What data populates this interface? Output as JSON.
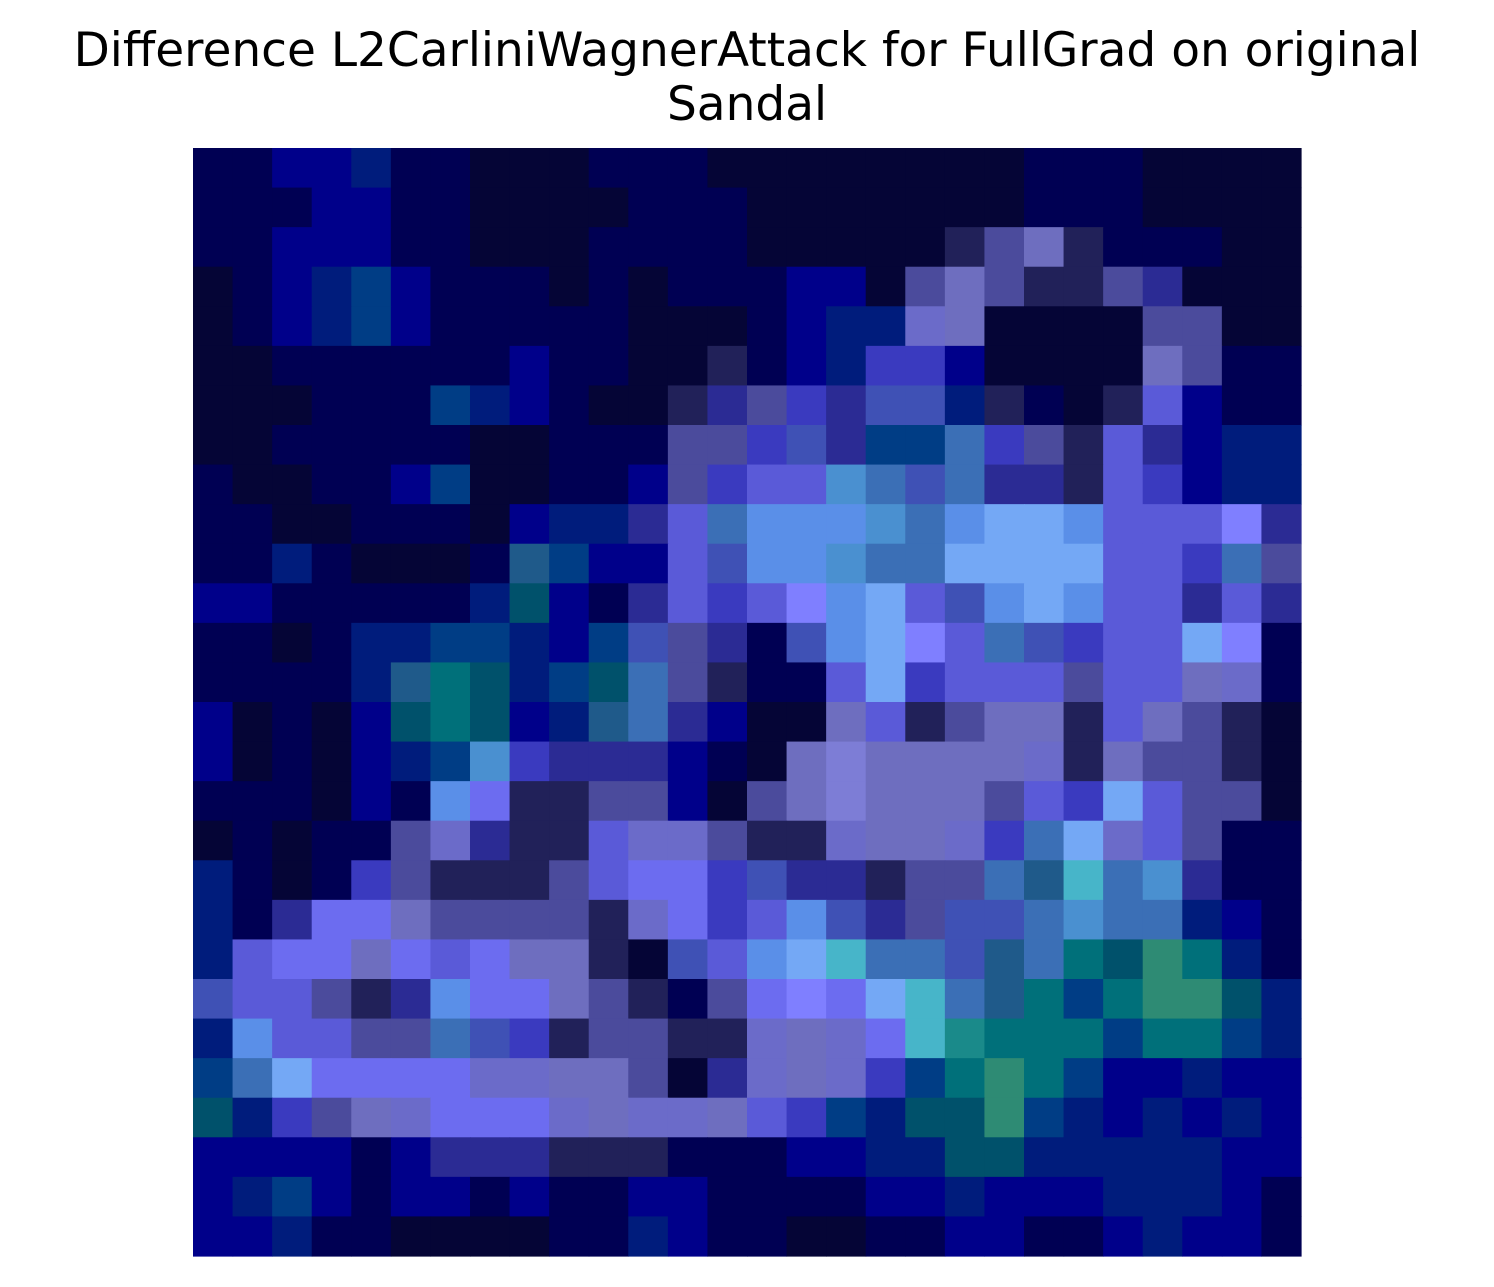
{
  "chart_data": {
    "type": "heatmap",
    "title_lines": [
      "Difference L2CarliniWagnerAttack for FullGrad on original",
      "Sandal"
    ],
    "xlabel": "",
    "ylabel": "",
    "axes_visible": false,
    "grid": false,
    "colorbar": false,
    "rows": 28,
    "cols": 28,
    "palette": [
      "#050536",
      "#000053",
      "#00008a",
      "#001c7c",
      "#003d85",
      "#212159",
      "#2b2b94",
      "#3a3abf",
      "#3f51b5",
      "#4b4b9c",
      "#5a5ad8",
      "#6b6bc9",
      "#6c6cf0",
      "#7f7fff",
      "#5a8fe8",
      "#4a90d0",
      "#74a8f5",
      "#3b6fb6",
      "#1f5a8a",
      "#00707a",
      "#1a8a8a",
      "#2e8b74",
      "#47b5c9",
      "#00516b",
      "#6e6ebf",
      "#7d7dd6"
    ],
    "cells": [
      [
        1,
        1,
        2,
        2,
        3,
        1,
        1,
        0,
        0,
        0,
        1,
        1,
        1,
        0,
        0,
        0,
        0,
        0,
        0,
        0,
        0,
        1,
        1,
        1,
        0,
        0,
        0,
        0
      ],
      [
        1,
        1,
        1,
        2,
        2,
        1,
        1,
        0,
        0,
        0,
        0,
        1,
        1,
        1,
        0,
        0,
        0,
        0,
        0,
        0,
        0,
        1,
        1,
        1,
        0,
        0,
        0,
        0
      ],
      [
        1,
        1,
        2,
        2,
        2,
        1,
        1,
        0,
        0,
        0,
        1,
        1,
        1,
        1,
        0,
        0,
        0,
        0,
        0,
        5,
        9,
        24,
        5,
        1,
        1,
        1,
        0,
        0
      ],
      [
        0,
        1,
        2,
        3,
        4,
        2,
        1,
        1,
        1,
        0,
        1,
        0,
        1,
        1,
        1,
        2,
        2,
        0,
        9,
        24,
        9,
        5,
        5,
        9,
        6,
        0,
        0,
        0
      ],
      [
        0,
        1,
        2,
        3,
        4,
        2,
        1,
        1,
        1,
        1,
        1,
        0,
        0,
        0,
        1,
        2,
        3,
        3,
        11,
        24,
        0,
        0,
        0,
        0,
        9,
        9,
        0,
        0
      ],
      [
        0,
        0,
        1,
        1,
        1,
        1,
        1,
        1,
        2,
        1,
        1,
        0,
        0,
        5,
        1,
        2,
        3,
        7,
        7,
        2,
        0,
        0,
        0,
        0,
        24,
        9,
        1,
        1
      ],
      [
        0,
        0,
        0,
        1,
        1,
        1,
        4,
        3,
        2,
        1,
        0,
        0,
        5,
        6,
        9,
        7,
        6,
        8,
        8,
        3,
        5,
        1,
        0,
        5,
        10,
        2,
        1,
        1
      ],
      [
        0,
        0,
        1,
        1,
        1,
        1,
        1,
        0,
        0,
        1,
        1,
        1,
        9,
        9,
        7,
        8,
        6,
        4,
        4,
        17,
        7,
        9,
        5,
        10,
        6,
        2,
        3,
        3
      ],
      [
        1,
        0,
        0,
        1,
        1,
        2,
        4,
        0,
        0,
        1,
        1,
        2,
        9,
        7,
        10,
        10,
        15,
        17,
        8,
        17,
        6,
        6,
        5,
        10,
        7,
        2,
        3,
        3
      ],
      [
        1,
        1,
        0,
        0,
        1,
        1,
        1,
        0,
        2,
        3,
        3,
        6,
        10,
        17,
        14,
        14,
        14,
        15,
        17,
        14,
        16,
        16,
        14,
        10,
        10,
        10,
        13,
        6
      ],
      [
        1,
        1,
        3,
        1,
        0,
        0,
        0,
        1,
        18,
        4,
        2,
        2,
        10,
        8,
        14,
        14,
        15,
        17,
        17,
        16,
        16,
        16,
        16,
        10,
        10,
        7,
        17,
        9
      ],
      [
        2,
        2,
        1,
        1,
        1,
        1,
        1,
        3,
        23,
        2,
        1,
        6,
        10,
        7,
        10,
        13,
        14,
        16,
        10,
        8,
        14,
        16,
        14,
        10,
        10,
        6,
        10,
        6
      ],
      [
        1,
        1,
        0,
        1,
        3,
        3,
        4,
        4,
        3,
        2,
        4,
        8,
        9,
        6,
        1,
        8,
        14,
        16,
        13,
        10,
        17,
        8,
        7,
        10,
        10,
        16,
        13,
        1
      ],
      [
        1,
        1,
        1,
        1,
        3,
        18,
        19,
        23,
        3,
        4,
        23,
        17,
        9,
        5,
        1,
        1,
        10,
        16,
        7,
        10,
        10,
        10,
        9,
        10,
        10,
        24,
        11,
        1
      ],
      [
        2,
        0,
        1,
        0,
        2,
        23,
        19,
        23,
        2,
        3,
        18,
        17,
        6,
        2,
        0,
        0,
        24,
        10,
        5,
        9,
        24,
        24,
        5,
        10,
        24,
        9,
        5,
        0
      ],
      [
        2,
        0,
        1,
        0,
        2,
        3,
        4,
        15,
        7,
        6,
        6,
        6,
        2,
        1,
        0,
        24,
        25,
        24,
        24,
        24,
        24,
        11,
        5,
        24,
        9,
        9,
        5,
        0
      ],
      [
        1,
        1,
        1,
        0,
        2,
        1,
        14,
        12,
        5,
        5,
        9,
        9,
        2,
        0,
        9,
        24,
        25,
        24,
        24,
        24,
        9,
        10,
        7,
        16,
        10,
        9,
        9,
        0
      ],
      [
        0,
        1,
        0,
        1,
        1,
        9,
        11,
        6,
        5,
        5,
        10,
        11,
        11,
        9,
        5,
        5,
        11,
        24,
        24,
        11,
        7,
        17,
        16,
        11,
        10,
        9,
        1,
        1
      ],
      [
        3,
        1,
        0,
        1,
        7,
        9,
        5,
        5,
        5,
        9,
        10,
        12,
        12,
        7,
        8,
        6,
        6,
        5,
        9,
        9,
        17,
        18,
        22,
        17,
        15,
        6,
        1,
        1
      ],
      [
        3,
        1,
        6,
        12,
        12,
        24,
        9,
        9,
        9,
        9,
        5,
        11,
        12,
        7,
        10,
        14,
        8,
        6,
        9,
        8,
        8,
        17,
        15,
        17,
        17,
        3,
        2,
        1
      ],
      [
        3,
        10,
        12,
        12,
        24,
        12,
        10,
        12,
        24,
        24,
        5,
        0,
        8,
        10,
        14,
        16,
        22,
        17,
        17,
        8,
        18,
        17,
        19,
        23,
        21,
        19,
        3,
        1
      ],
      [
        8,
        10,
        10,
        9,
        5,
        6,
        14,
        12,
        12,
        24,
        9,
        5,
        1,
        9,
        12,
        13,
        12,
        16,
        22,
        17,
        18,
        19,
        4,
        19,
        21,
        21,
        23,
        3
      ],
      [
        3,
        14,
        10,
        10,
        9,
        9,
        17,
        8,
        7,
        5,
        9,
        9,
        5,
        5,
        11,
        24,
        11,
        12,
        22,
        20,
        19,
        19,
        19,
        4,
        19,
        19,
        4,
        3
      ],
      [
        4,
        17,
        16,
        12,
        12,
        12,
        12,
        11,
        11,
        24,
        24,
        9,
        0,
        6,
        11,
        24,
        11,
        7,
        4,
        19,
        21,
        19,
        4,
        2,
        2,
        3,
        2,
        2
      ],
      [
        23,
        3,
        7,
        9,
        24,
        11,
        12,
        12,
        12,
        11,
        24,
        11,
        11,
        24,
        10,
        7,
        4,
        3,
        23,
        23,
        21,
        4,
        3,
        2,
        3,
        2,
        3,
        2
      ],
      [
        2,
        2,
        2,
        2,
        1,
        2,
        6,
        6,
        6,
        5,
        5,
        5,
        1,
        1,
        1,
        2,
        2,
        3,
        3,
        23,
        23,
        3,
        3,
        3,
        3,
        3,
        2,
        2
      ],
      [
        2,
        3,
        4,
        2,
        1,
        2,
        2,
        1,
        2,
        1,
        1,
        2,
        2,
        1,
        1,
        1,
        1,
        2,
        2,
        3,
        2,
        2,
        2,
        3,
        3,
        3,
        2,
        1
      ],
      [
        2,
        2,
        3,
        1,
        1,
        0,
        0,
        0,
        0,
        1,
        1,
        3,
        2,
        1,
        1,
        0,
        0,
        1,
        1,
        2,
        2,
        1,
        1,
        2,
        3,
        2,
        2,
        1
      ]
    ]
  }
}
